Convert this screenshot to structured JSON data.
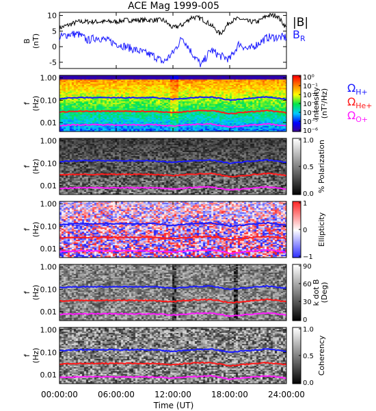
{
  "title": "ACE Mag 1999-005",
  "time_axis": {
    "label": "Time (UT)",
    "ticks": [
      "00:00:00",
      "06:00:00",
      "12:00:00",
      "18:00:00",
      "24:00:00"
    ],
    "range_hours": [
      0,
      24
    ]
  },
  "colors": {
    "total_b": "#000000",
    "b_r": "#1a1aff",
    "h_gyro": "#1a1aff",
    "he_gyro": "#ff1a1a",
    "o_gyro": "#ff1aff"
  },
  "legend": {
    "total_b": "|B|",
    "b_r": "B",
    "b_r_sub": "R",
    "h_symbol": "Ω",
    "h_sub": "H+",
    "he_symbol": "Ω",
    "he_sub": "He+",
    "o_symbol": "Ω",
    "o_sub": "O+"
  },
  "panels": {
    "mag": {
      "ylabel_top": "B",
      "ylabel_bottom": "(nT)",
      "ylim": [
        -7,
        11
      ],
      "ticks": [
        "10",
        "5",
        "0",
        "-5"
      ]
    },
    "spec_ylabel_top": "f",
    "spec_ylabel_bottom": "(Hz)",
    "spec_ticks": [
      "1.00",
      "0.10",
      "0.01"
    ],
    "intensity": {
      "cb_label_1": "Intensity",
      "cb_label_2": "(nT²/Hz)",
      "cb_ticks": [
        "10⁰",
        "10⁻¹",
        "10⁻²",
        "10⁻³",
        "10⁻⁴",
        "10⁻⁵",
        "10⁻⁶"
      ]
    },
    "polarization": {
      "cb_label": "% Polarization",
      "cb_ticks": [
        "1.0",
        "0.5",
        "0.0"
      ]
    },
    "ellipticity": {
      "cb_label": "Ellipticity",
      "cb_ticks": [
        "1",
        "0",
        "−1"
      ]
    },
    "kdotb": {
      "cb_label_1": "k dot B",
      "cb_label_2": "(Deg)",
      "cb_ticks": [
        "90",
        "60",
        "30",
        "0"
      ]
    },
    "coherency": {
      "cb_label": "Coherency",
      "cb_ticks": [
        "1.0",
        "0.5",
        "0.0"
      ]
    }
  },
  "chart_data": [
    {
      "type": "line",
      "title": "ACE Mag 1999-005",
      "xlabel": "Time (UT)",
      "ylabel": "B (nT)",
      "xlim_hours": [
        0,
        24
      ],
      "ylim": [
        -7,
        11
      ],
      "series": [
        {
          "name": "|B|",
          "x_hours": [
            0,
            1,
            2,
            3,
            4,
            5,
            6,
            7,
            8,
            9,
            10,
            11,
            12,
            13,
            14,
            15,
            16,
            17,
            18,
            19,
            20,
            21,
            22,
            23,
            24
          ],
          "values": [
            6,
            7,
            8,
            8,
            8,
            8,
            8,
            8.5,
            8.5,
            8.5,
            8.5,
            8.5,
            6,
            7,
            9.5,
            9,
            7,
            4,
            8,
            9,
            8,
            8,
            10,
            10,
            6
          ]
        },
        {
          "name": "B",
          "x_hours": [
            0,
            1,
            2,
            3,
            4,
            5,
            6,
            7,
            8,
            9,
            10,
            11,
            12,
            13,
            14,
            15,
            16,
            17,
            18,
            19,
            20,
            21,
            22,
            23,
            24
          ],
          "values": [
            3,
            4,
            4,
            2,
            3,
            2,
            1,
            0,
            -1,
            -2,
            -3,
            -5,
            -2,
            3,
            -2,
            -6,
            -1,
            -3,
            -4,
            1,
            -1,
            1,
            3,
            3,
            3
          ]
        }
      ]
    },
    {
      "type": "line",
      "ylabel": "f (Hz)",
      "yscale": "log",
      "ylim": [
        0.004,
        1.3
      ],
      "xlim_hours": [
        0,
        24
      ],
      "series": [
        {
          "name": "H+",
          "x_hours": [
            0,
            2,
            4,
            6,
            8,
            10,
            12,
            14,
            16,
            18,
            20,
            22,
            24
          ],
          "values": [
            0.12,
            0.13,
            0.13,
            0.13,
            0.13,
            0.13,
            0.11,
            0.13,
            0.14,
            0.1,
            0.12,
            0.14,
            0.11
          ]
        },
        {
          "name": "He+",
          "x_hours": [
            0,
            2,
            4,
            6,
            8,
            10,
            12,
            14,
            16,
            18,
            20,
            22,
            24
          ],
          "values": [
            0.03,
            0.032,
            0.032,
            0.032,
            0.032,
            0.032,
            0.028,
            0.033,
            0.035,
            0.025,
            0.03,
            0.035,
            0.028
          ]
        },
        {
          "name": "O+",
          "x_hours": [
            0,
            2,
            4,
            6,
            8,
            10,
            12,
            14,
            16,
            18,
            20,
            22,
            24
          ],
          "values": [
            0.0075,
            0.008,
            0.008,
            0.008,
            0.008,
            0.008,
            0.007,
            0.0082,
            0.0088,
            0.0063,
            0.0075,
            0.0088,
            0.007
          ]
        }
      ]
    }
  ]
}
